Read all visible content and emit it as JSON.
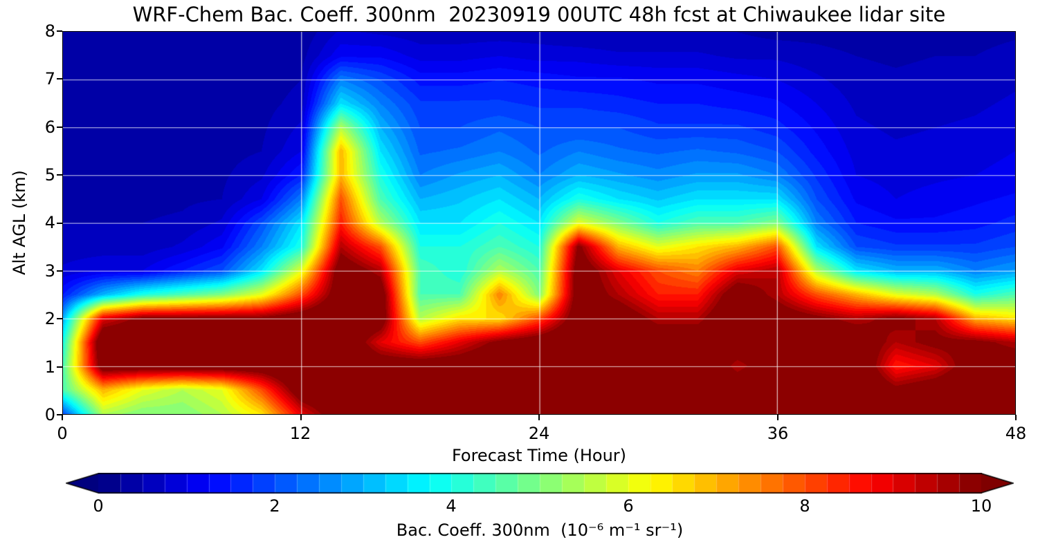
{
  "title": "WRF-Chem Bac. Coeff. 300nm  20230919 00UTC 48h fcst at Chiwaukee lidar site",
  "axes": {
    "x_label": "Forecast Time (Hour)",
    "y_label": "Alt AGL (km)",
    "x_ticks": [
      0,
      12,
      24,
      36,
      48
    ],
    "y_ticks": [
      8,
      7,
      6,
      5,
      4,
      3,
      2,
      1,
      0
    ]
  },
  "colorbar": {
    "label": "Bac. Coeff. 300nm  (10⁻⁶ m⁻¹ sr⁻¹)",
    "ticks": [
      0,
      2,
      4,
      6,
      8,
      10
    ],
    "min": 0,
    "max": 10,
    "colormap": "jet",
    "under_color": "#00007f",
    "over_color": "#7f0000"
  },
  "chart_data": {
    "type": "heatmap",
    "title": "WRF-Chem Bac. Coeff. 300nm  20230919 00UTC 48h fcst at Chiwaukee lidar site",
    "xlabel": "Forecast Time (Hour)",
    "ylabel": "Alt AGL (km)",
    "units": "10⁻⁶ m⁻¹ sr⁻¹",
    "xlim": [
      0,
      48
    ],
    "ylim": [
      0,
      8
    ],
    "clim": [
      0,
      10
    ],
    "colormap": "jet",
    "levels": 40,
    "grid": true,
    "grid_x": [
      12,
      24,
      36
    ],
    "grid_y": [
      1,
      2,
      3,
      4,
      5,
      6,
      7
    ],
    "grid_color": "rgba(255,255,255,0.75)",
    "x_hours": [
      0,
      2,
      4,
      6,
      8,
      10,
      12,
      14,
      16,
      18,
      20,
      22,
      24,
      26,
      28,
      30,
      32,
      34,
      36,
      38,
      40,
      42,
      44,
      46,
      48
    ],
    "y_km": [
      0,
      0.5,
      1,
      1.5,
      2,
      2.5,
      3,
      3.5,
      4,
      4.5,
      5,
      5.5,
      6,
      6.5,
      7,
      7.5,
      8
    ],
    "values_by_altitude": [
      [
        2,
        5.5,
        5,
        5,
        5.5,
        6.5,
        9,
        10.5,
        11,
        11,
        11,
        11,
        11,
        11,
        11,
        11,
        11,
        11,
        11,
        11,
        11,
        11,
        11,
        11,
        11
      ],
      [
        4.5,
        7,
        6,
        5.5,
        6,
        8,
        10.5,
        11,
        11,
        11,
        11,
        11,
        11,
        11,
        11,
        11,
        11,
        10.5,
        11,
        11,
        11,
        10,
        10.5,
        11,
        11
      ],
      [
        4.5,
        10.5,
        10.5,
        10.5,
        10.5,
        10.5,
        11,
        11,
        10.5,
        10.5,
        10.5,
        11,
        11,
        11,
        11,
        11,
        11,
        9.5,
        10.5,
        11,
        11,
        8.5,
        9,
        10.5,
        10.5
      ],
      [
        4,
        11,
        11,
        11,
        11,
        11,
        11,
        11,
        9,
        8,
        9,
        10,
        10.5,
        11,
        11,
        10.5,
        10.5,
        10.5,
        10,
        10.5,
        10.5,
        9.5,
        10,
        10,
        9.5
      ],
      [
        3,
        9,
        10,
        10,
        10,
        10,
        10.5,
        11,
        10.5,
        5.5,
        6.5,
        6.5,
        8,
        10.5,
        10.5,
        9.5,
        9.5,
        11,
        10.5,
        10,
        9.5,
        10,
        9.5,
        7,
        6.5
      ],
      [
        1.5,
        3,
        4,
        4.5,
        5,
        6,
        8,
        10.5,
        10.5,
        4.5,
        4.5,
        7.5,
        5,
        10.5,
        9.5,
        8.5,
        8.5,
        10.5,
        9.5,
        8,
        7,
        6,
        5.5,
        4,
        4.5
      ],
      [
        0.8,
        1,
        1,
        1.5,
        2,
        3.5,
        6,
        10.5,
        9.5,
        4.5,
        4,
        5.5,
        4.5,
        10.5,
        9,
        8,
        7.5,
        9,
        9.5,
        5.5,
        3.5,
        3,
        3,
        2.5,
        2.8
      ],
      [
        0.6,
        0.6,
        0.6,
        0.8,
        1.2,
        2.5,
        4,
        9.5,
        8,
        4,
        4,
        4.5,
        4,
        10,
        7,
        6,
        6.5,
        7,
        8,
        3.5,
        2,
        1.8,
        1.8,
        1.8,
        2
      ],
      [
        0.5,
        0.5,
        0.5,
        0.55,
        0.8,
        2,
        3.5,
        8.5,
        5.5,
        3.5,
        3.5,
        4,
        3.5,
        6,
        5,
        4,
        4.5,
        4.5,
        5,
        2.5,
        1.5,
        1.3,
        1.3,
        1.4,
        1.6
      ],
      [
        0.45,
        0.4,
        0.42,
        0.45,
        0.5,
        1,
        2.5,
        8,
        4.5,
        3,
        3.2,
        3.5,
        3,
        4,
        3.5,
        3.2,
        3.5,
        3.5,
        3.5,
        2,
        1.2,
        1,
        1.1,
        1.2,
        1.3
      ],
      [
        0.4,
        0.38,
        0.4,
        0.4,
        0.45,
        0.7,
        1.5,
        7,
        4,
        2.5,
        2.8,
        3,
        2.5,
        3,
        2.8,
        2.6,
        2.8,
        2.8,
        2.5,
        1.7,
        1,
        0.9,
        0.95,
        1,
        1.1
      ],
      [
        0.38,
        0.35,
        0.36,
        0.37,
        0.4,
        0.5,
        1,
        7,
        3.5,
        2.2,
        2.3,
        2.5,
        2.2,
        2.5,
        2.3,
        2.2,
        2.3,
        2.2,
        2,
        1.4,
        0.9,
        0.8,
        0.85,
        0.9,
        1
      ],
      [
        0.35,
        0.32,
        0.33,
        0.34,
        0.36,
        0.45,
        0.8,
        5.5,
        3,
        2,
        2,
        2.2,
        2,
        2,
        2,
        1.8,
        1.8,
        1.8,
        1.6,
        1.2,
        0.8,
        0.7,
        0.75,
        0.8,
        0.9
      ],
      [
        0.3,
        0.3,
        0.3,
        0.31,
        0.32,
        0.4,
        0.6,
        3.5,
        2.5,
        1.8,
        1.8,
        1.8,
        1.7,
        1.7,
        1.6,
        1.5,
        1.5,
        1.4,
        1.3,
        1,
        0.7,
        0.6,
        0.65,
        0.7,
        0.8
      ],
      [
        0.3,
        0.28,
        0.29,
        0.29,
        0.3,
        0.35,
        0.5,
        2.5,
        2,
        1.4,
        1.4,
        1.5,
        1.4,
        1.3,
        1.3,
        1.2,
        1.2,
        1.1,
        1,
        0.8,
        0.6,
        0.55,
        0.6,
        0.6,
        0.7
      ],
      [
        0.28,
        0.27,
        0.27,
        0.27,
        0.28,
        0.3,
        0.4,
        1.2,
        1.2,
        0.9,
        0.9,
        1,
        0.9,
        0.9,
        0.8,
        0.8,
        0.8,
        0.7,
        0.7,
        0.6,
        0.5,
        0.45,
        0.5,
        0.5,
        0.6
      ],
      [
        0.25,
        0.25,
        0.25,
        0.25,
        0.26,
        0.28,
        0.3,
        0.8,
        0.7,
        0.6,
        0.6,
        0.6,
        0.6,
        0.5,
        0.5,
        0.5,
        0.5,
        0.5,
        0.4,
        0.4,
        0.35,
        0.35,
        0.4,
        0.4,
        0.45
      ]
    ]
  }
}
